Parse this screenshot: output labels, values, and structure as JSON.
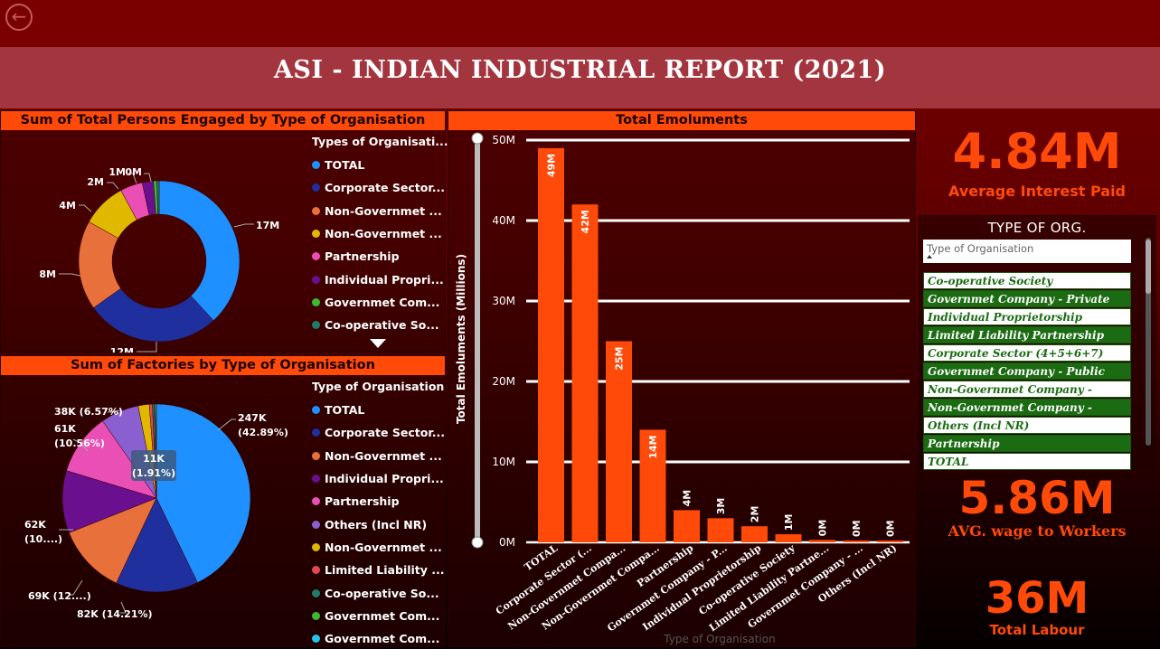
{
  "header": {
    "title": "ASI - INDIAN INDUSTRIAL REPORT (2021)"
  },
  "colors": {
    "orange": "#ff4a0a",
    "slicer_green": "#1a6b12"
  },
  "persons_chart": {
    "title": "Sum of Total Persons Engaged by Type of Organisation",
    "legend_title": "Types of Organisati...",
    "legend": [
      {
        "name": "TOTAL",
        "color": "#1e90ff"
      },
      {
        "name": "Corporate  Sector...",
        "color": "#1f2f9e"
      },
      {
        "name": "Non-Governmet ...",
        "color": "#e8703a"
      },
      {
        "name": "Non-Governmet ...",
        "color": "#e0b800"
      },
      {
        "name": "Partnership",
        "color": "#e94fb4"
      },
      {
        "name": "Individual Propri...",
        "color": "#6a0f8e"
      },
      {
        "name": "Governmet Com...",
        "color": "#3cba2e"
      },
      {
        "name": "Co-operative So...",
        "color": "#1f7a6a"
      }
    ],
    "more_icon": "chevron-down-icon"
  },
  "factories_chart": {
    "title": "Sum of Factories by Type of Organisation",
    "legend_title": "Type of Organisation",
    "legend": [
      {
        "name": "TOTAL",
        "color": "#1e90ff"
      },
      {
        "name": "Corporate  Sector...",
        "color": "#1f2f9e"
      },
      {
        "name": "Non-Governmet ...",
        "color": "#e8703a"
      },
      {
        "name": "Individual Propri...",
        "color": "#6a0f8e"
      },
      {
        "name": "Partnership",
        "color": "#e94fb4"
      },
      {
        "name": "Others (Incl NR)",
        "color": "#8a5fd0"
      },
      {
        "name": "Non-Governmet ...",
        "color": "#e0b800"
      },
      {
        "name": "Limited Liability ...",
        "color": "#e04a55"
      },
      {
        "name": "Co-operative So...",
        "color": "#1f7a6a"
      },
      {
        "name": "Governmet Com...",
        "color": "#3cba2e"
      },
      {
        "name": "Governmet Com...",
        "color": "#23c4e8"
      }
    ]
  },
  "emoluments_chart": {
    "title": "Total Emoluments",
    "x_axis_title": "Type of Organisation",
    "y_axis_title": "Total Emoluments (Millions)"
  },
  "kpis": {
    "interest": {
      "value": "4.84M",
      "label": "Average Interest  Paid"
    },
    "wage": {
      "value": "5.86M",
      "label": "AVG. wage to Workers"
    },
    "labour": {
      "value": "36M",
      "label": "Total Labour"
    }
  },
  "slicer": {
    "title": "TYPE OF ORG.",
    "search_placeholder": "Type of Organisation",
    "items": [
      "Co-operative Society",
      "Governmet Company - Private",
      "Individual Proprietorship",
      "Limited Liability Partnership",
      "Corporate Sector (4+5+6+7)",
      "Governmet Company - Public",
      "Non-Governmet Company - Private",
      "Non-Governmet Company - Public",
      "Others (Incl NR)",
      "Partnership",
      "TOTAL"
    ]
  },
  "chart_data": [
    {
      "type": "pie",
      "title": "Sum of Total Persons Engaged by Type of Organisation",
      "categories": [
        "TOTAL",
        "Corporate Sector",
        "Non-Governmet (a)",
        "Non-Governmet (b)",
        "Partnership",
        "Individual Propri",
        "Governmet Com",
        "Co-operative So"
      ],
      "values": [
        17,
        12,
        8,
        4,
        2,
        1,
        0.3,
        0.2
      ],
      "labels": [
        "17M",
        "12M",
        "8M",
        "4M",
        "2M",
        "1M",
        "0M",
        ""
      ],
      "donut": true
    },
    {
      "type": "pie",
      "title": "Sum of Factories by Type of Organisation",
      "categories": [
        "TOTAL",
        "Corporate Sector",
        "Non-Governmet (a)",
        "Individual Propri",
        "Partnership",
        "Others (Incl NR)",
        "Non-Governmet (b)",
        "Limited Liability",
        "Co-operative So",
        "Governmet Com (a)",
        "Governmet Com (b)"
      ],
      "values": [
        247,
        82,
        69,
        62,
        61,
        38,
        11,
        3,
        2,
        1,
        1
      ],
      "labels": [
        "247K\n(42.89%)",
        "82K (14.21%)",
        "69K (12....)",
        "62K\n(10....)",
        "61K\n(10.56%)",
        "38K (6.57%)",
        "11K\n(1.91%)",
        "",
        "",
        "",
        ""
      ]
    },
    {
      "type": "bar",
      "title": "Total Emoluments",
      "xlabel": "Type of Organisation",
      "ylabel": "Total Emoluments (Millions)",
      "categories": [
        "TOTAL",
        "Corporate Sector (...",
        "Non-Governmet Compa...",
        "Non-Governmet Compa...",
        "Partnership",
        "Governmet Company - P...",
        "Individual Proprietorship",
        "Co-operative Society",
        "Limited Liability Partne...",
        "Governmet Company - ...",
        "Others (Incl NR)"
      ],
      "values": [
        49,
        42,
        25,
        14,
        4,
        3,
        2,
        1,
        0.3,
        0.2,
        0.1
      ],
      "value_labels": [
        "49M",
        "42M",
        "25M",
        "14M",
        "4M",
        "3M",
        "2M",
        "1M",
        "0M",
        "0M",
        "0M"
      ],
      "ylim": [
        0,
        50
      ],
      "yticks": [
        "0M",
        "10M",
        "20M",
        "30M",
        "40M",
        "50M"
      ]
    }
  ]
}
